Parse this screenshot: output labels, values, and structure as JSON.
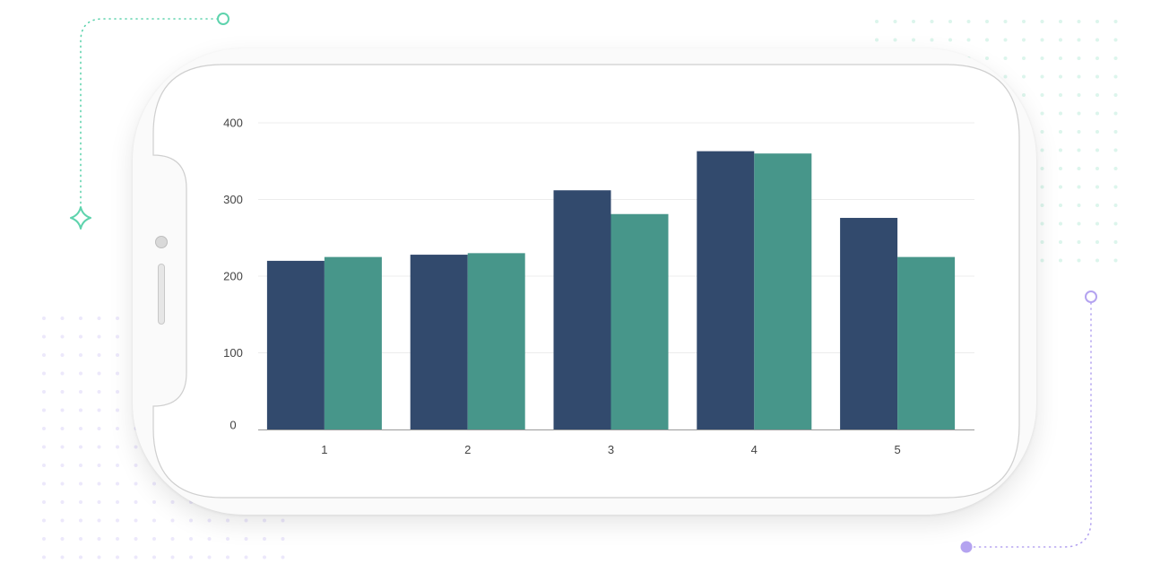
{
  "colors": {
    "series_1": "#324a6d",
    "series_2": "#47968a",
    "accent_green": "#5ed3ad",
    "accent_purple": "#b4a3f0"
  },
  "icons": [
    "diamond-sparkle-icon",
    "circle-node-icon",
    "filled-dot-icon"
  ],
  "chart_data": {
    "type": "bar",
    "categories": [
      "1",
      "2",
      "3",
      "4",
      "5"
    ],
    "series": [
      {
        "values": [
          220,
          228,
          312,
          363,
          276
        ],
        "color": "#324a6d"
      },
      {
        "values": [
          225,
          230,
          281,
          360,
          225
        ],
        "color": "#47968a"
      }
    ],
    "title": "",
    "xlabel": "",
    "ylabel": "",
    "ylim": [
      0,
      400
    ],
    "yticks": [
      "0",
      "100",
      "200",
      "300",
      "400"
    ],
    "grid": true,
    "legend": "none"
  }
}
